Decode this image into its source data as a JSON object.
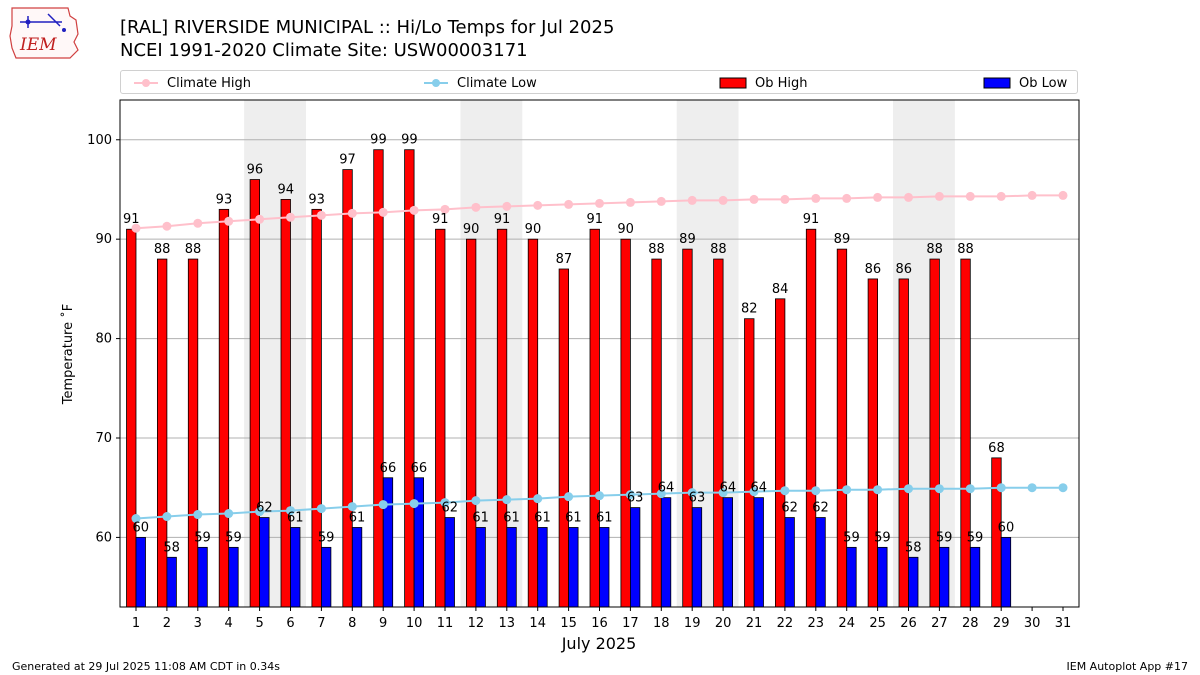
{
  "header": {
    "title_line1": "[RAL] RIVERSIDE MUNICIPAL :: Hi/Lo Temps for Jul 2025",
    "title_line2": "NCEI 1991-2020 Climate Site: USW00003171"
  },
  "logo": {
    "text": "IEM"
  },
  "footer": {
    "left": "Generated at 29 Jul 2025 11:08 AM CDT in 0.34s",
    "right": "IEM Autoplot App #17"
  },
  "legend": [
    {
      "label": "Climate High",
      "kind": "line",
      "color": "#ffc0cb"
    },
    {
      "label": "Climate Low",
      "kind": "line",
      "color": "#87ceeb"
    },
    {
      "label": "Ob High",
      "kind": "bar",
      "color": "#ff0000"
    },
    {
      "label": "Ob Low",
      "kind": "bar",
      "color": "#0000ff"
    }
  ],
  "chart_data": {
    "type": "bar",
    "xlabel": "July 2025",
    "ylabel": "Temperature ˚F",
    "ylim": [
      53,
      104
    ],
    "yticks": [
      60,
      70,
      80,
      90,
      100
    ],
    "grid": "horizontal",
    "legend_position": "top",
    "categories": [
      "1",
      "2",
      "3",
      "4",
      "5",
      "6",
      "7",
      "8",
      "9",
      "10",
      "11",
      "12",
      "13",
      "14",
      "15",
      "16",
      "17",
      "18",
      "19",
      "20",
      "21",
      "22",
      "23",
      "24",
      "25",
      "26",
      "27",
      "28",
      "29",
      "30",
      "31"
    ],
    "weekend_shading_days": [
      [
        5,
        6
      ],
      [
        12,
        13
      ],
      [
        19,
        20
      ],
      [
        26,
        27
      ]
    ],
    "series": [
      {
        "name": "Ob High",
        "kind": "bar",
        "color": "#ff0000",
        "values": [
          91,
          88,
          88,
          93,
          96,
          94,
          93,
          97,
          99,
          99,
          91,
          90,
          91,
          90,
          87,
          91,
          90,
          88,
          89,
          88,
          82,
          84,
          91,
          89,
          86,
          86,
          88,
          88,
          68,
          null,
          null
        ]
      },
      {
        "name": "Ob Low",
        "kind": "bar",
        "color": "#0000ff",
        "values": [
          60,
          58,
          59,
          59,
          62,
          61,
          59,
          61,
          66,
          66,
          62,
          61,
          61,
          61,
          61,
          61,
          63,
          64,
          63,
          64,
          64,
          62,
          62,
          59,
          59,
          58,
          59,
          59,
          60,
          null,
          null
        ]
      },
      {
        "name": "Climate High",
        "kind": "line",
        "color": "#ffc0cb",
        "values": [
          91.1,
          91.3,
          91.6,
          91.8,
          92.0,
          92.2,
          92.4,
          92.6,
          92.7,
          92.9,
          93.0,
          93.2,
          93.3,
          93.4,
          93.5,
          93.6,
          93.7,
          93.8,
          93.9,
          93.9,
          94.0,
          94.0,
          94.1,
          94.1,
          94.2,
          94.2,
          94.3,
          94.3,
          94.3,
          94.4,
          94.4
        ]
      },
      {
        "name": "Climate Low",
        "kind": "line",
        "color": "#87ceeb",
        "values": [
          61.9,
          62.1,
          62.3,
          62.4,
          62.6,
          62.7,
          62.9,
          63.1,
          63.3,
          63.4,
          63.5,
          63.7,
          63.8,
          63.9,
          64.1,
          64.2,
          64.3,
          64.4,
          64.5,
          64.5,
          64.6,
          64.7,
          64.7,
          64.8,
          64.8,
          64.9,
          64.9,
          64.9,
          65.0,
          65.0,
          65.0
        ]
      }
    ]
  }
}
